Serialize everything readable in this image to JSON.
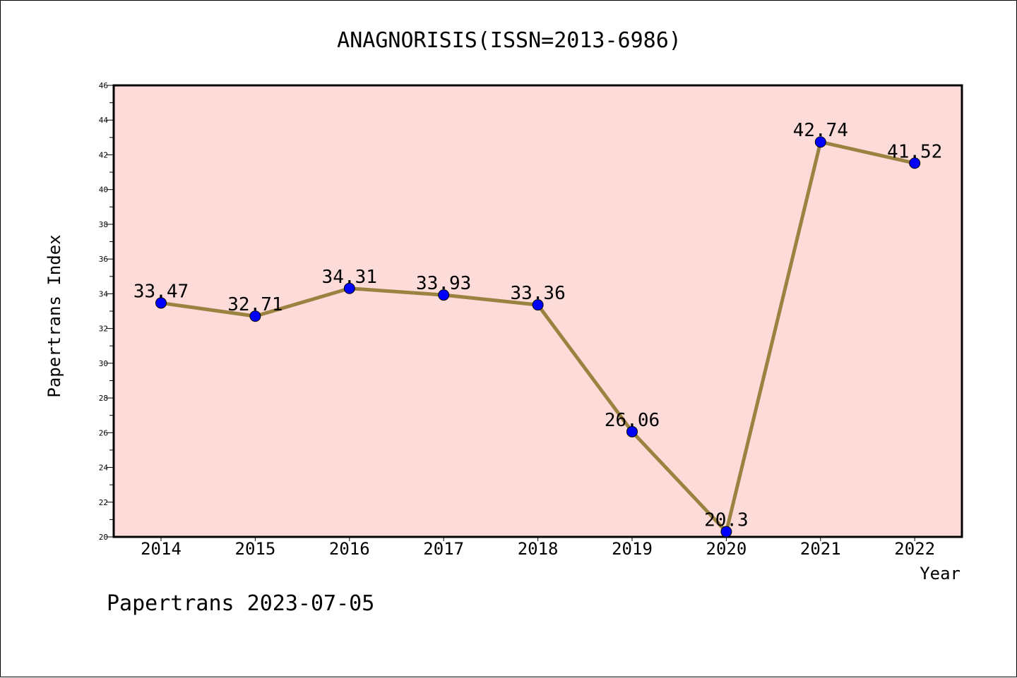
{
  "chart_data": {
    "type": "line",
    "title": "ANAGNORISIS(ISSN=2013-6986)",
    "xlabel": "Year",
    "ylabel": "Papertrans Index",
    "categories": [
      "2014",
      "2015",
      "2016",
      "2017",
      "2018",
      "2019",
      "2020",
      "2021",
      "2022"
    ],
    "values": [
      33.47,
      32.71,
      34.31,
      33.93,
      33.36,
      26.06,
      20.3,
      42.74,
      41.52
    ],
    "data_labels": [
      "33.47",
      "32.71",
      "34.31",
      "33.93",
      "33.36",
      "26.06",
      "20.3",
      "42.74",
      "41.52"
    ],
    "ylim": [
      20,
      46
    ],
    "yticks": [
      20,
      22,
      24,
      26,
      28,
      30,
      32,
      34,
      36,
      38,
      40,
      42,
      44,
      46
    ],
    "grid": false,
    "legend": "none",
    "footer": "Papertrans 2023-07-05",
    "colors": {
      "plot_background": "#fddbd8",
      "line": "#9a8240",
      "marker": "#0000ff"
    }
  }
}
